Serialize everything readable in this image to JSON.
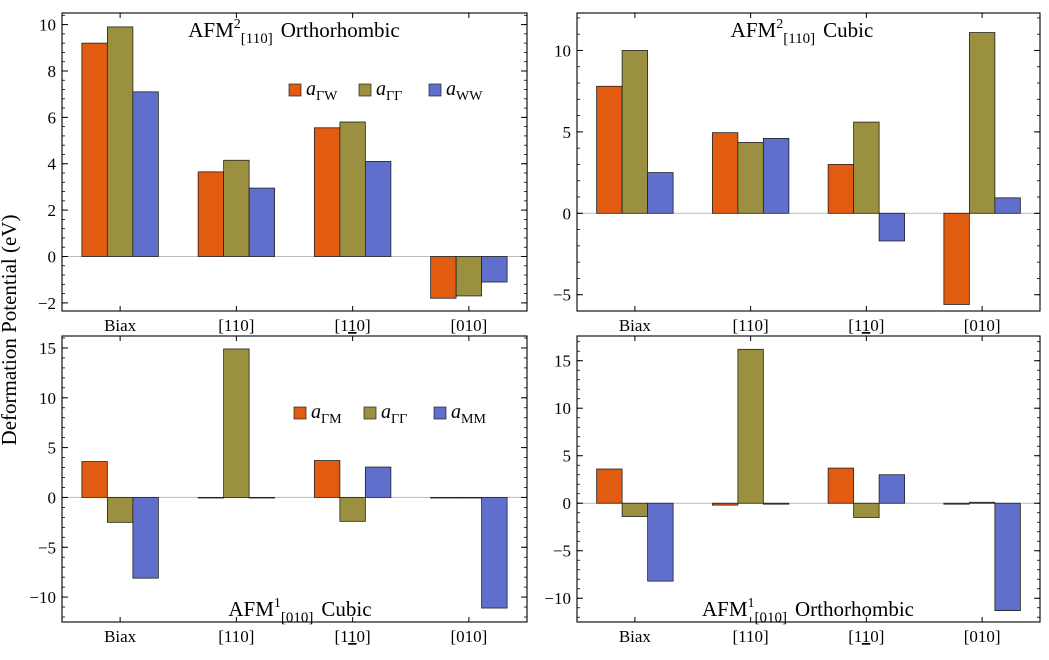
{
  "figure": {
    "ylabel": "Deformation Potential (eV)"
  },
  "colors": {
    "s1": "#e15b10",
    "s2": "#9a9040",
    "s3": "#5f6fcb",
    "zero_line": "#bcbcbc",
    "frame": "#000000"
  },
  "chart_data": [
    {
      "type": "bar",
      "title": {
        "main": "AFM",
        "sup": "2",
        "sub": "[110]",
        "rest": "Orthorhombic"
      },
      "categories": [
        {
          "text": "Biax"
        },
        {
          "text": "[110]"
        },
        {
          "pre": "[1",
          "under": "1",
          "post": "0]"
        },
        {
          "text": "[010]"
        }
      ],
      "series": [
        {
          "name": "a",
          "sub": "ΓW",
          "values": [
            9.2,
            3.65,
            5.55,
            -1.8
          ]
        },
        {
          "name": "a",
          "sub": "ΓΓ",
          "values": [
            9.9,
            4.15,
            5.8,
            -1.7
          ]
        },
        {
          "name": "a",
          "sub": "WW",
          "values": [
            7.1,
            2.95,
            4.1,
            -1.1
          ]
        }
      ],
      "ylim": [
        -2.35,
        10.5
      ],
      "yticks": [
        -2,
        0,
        2,
        4,
        6,
        8,
        10
      ],
      "ytick_labels": [
        "−2",
        "0",
        "2",
        "4",
        "6",
        "8",
        "10"
      ],
      "legend": "top-right"
    },
    {
      "type": "bar",
      "title": {
        "main": "AFM",
        "sup": "2",
        "sub": "[110]",
        "rest": "Cubic"
      },
      "categories": [
        {
          "text": "Biax"
        },
        {
          "text": "[110]"
        },
        {
          "pre": "[1",
          "under": "1",
          "post": "0]"
        },
        {
          "text": "[010]"
        }
      ],
      "series": [
        {
          "name": "a",
          "sub": "ΓW",
          "values": [
            7.8,
            4.95,
            3.0,
            -5.6
          ]
        },
        {
          "name": "a",
          "sub": "ΓΓ",
          "values": [
            10.0,
            4.35,
            5.6,
            11.1
          ]
        },
        {
          "name": "a",
          "sub": "WW",
          "values": [
            2.5,
            4.6,
            -1.7,
            0.95
          ]
        }
      ],
      "ylim": [
        -6.0,
        12.3
      ],
      "yticks": [
        -5,
        0,
        5,
        10
      ],
      "ytick_labels": [
        "−5",
        "0",
        "5",
        "10"
      ],
      "legend": "none"
    },
    {
      "type": "bar",
      "title": {
        "main": "AFM",
        "sup": "1",
        "sub": "[010]",
        "rest": "Cubic"
      },
      "categories": [
        {
          "text": "Biax"
        },
        {
          "text": "[110]"
        },
        {
          "pre": "[1",
          "under": "1",
          "post": "0]"
        },
        {
          "text": "[010]"
        }
      ],
      "series": [
        {
          "name": "a",
          "sub": "ΓM",
          "values": [
            3.6,
            0.0,
            3.7,
            -0.05
          ]
        },
        {
          "name": "a",
          "sub": "ΓΓ",
          "values": [
            -2.5,
            14.9,
            -2.4,
            -0.05
          ]
        },
        {
          "name": "a",
          "sub": "MM",
          "values": [
            -8.1,
            0.0,
            3.05,
            -11.1
          ]
        }
      ],
      "ylim": [
        -12.5,
        16.2
      ],
      "yticks": [
        -10,
        -5,
        0,
        5,
        10,
        15
      ],
      "ytick_labels": [
        "−10",
        "−5",
        "0",
        "5",
        "10",
        "15"
      ],
      "legend": "middle-right"
    },
    {
      "type": "bar",
      "title": {
        "main": "AFM",
        "sup": "1",
        "sub": "[010]",
        "rest": "Orthorhombic"
      },
      "categories": [
        {
          "text": "Biax"
        },
        {
          "text": "[110]"
        },
        {
          "pre": "[1",
          "under": "1",
          "post": "0]"
        },
        {
          "text": "[010]"
        }
      ],
      "series": [
        {
          "name": "a",
          "sub": "ΓM",
          "values": [
            3.6,
            -0.2,
            3.7,
            -0.1
          ]
        },
        {
          "name": "a",
          "sub": "ΓΓ",
          "values": [
            -1.4,
            16.2,
            -1.5,
            0.1
          ]
        },
        {
          "name": "a",
          "sub": "MM",
          "values": [
            -8.2,
            -0.1,
            3.0,
            -11.3
          ]
        }
      ],
      "ylim": [
        -12.5,
        17.6
      ],
      "yticks": [
        -10,
        -5,
        0,
        5,
        10,
        15
      ],
      "ytick_labels": [
        "−10",
        "−5",
        "0",
        "5",
        "10",
        "15"
      ],
      "legend": "none"
    }
  ]
}
